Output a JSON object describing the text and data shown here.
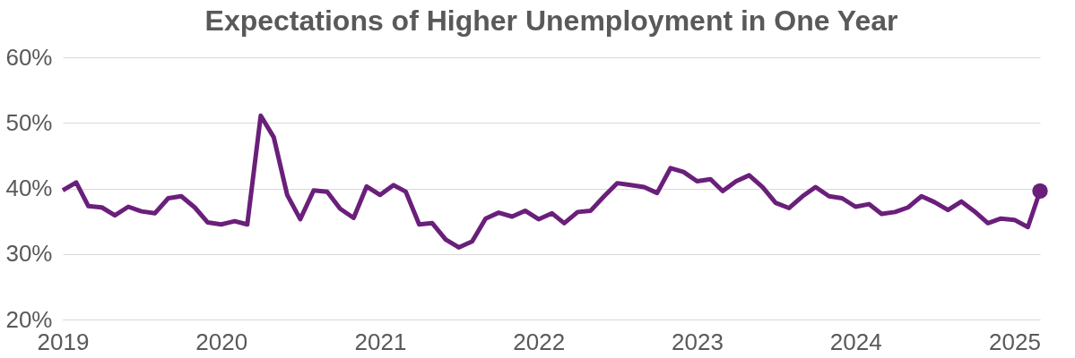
{
  "chart_data": {
    "type": "line",
    "title": "Expectations of Higher Unemployment in One Year",
    "x": [
      "2019-01",
      "2019-02",
      "2019-03",
      "2019-04",
      "2019-05",
      "2019-06",
      "2019-07",
      "2019-08",
      "2019-09",
      "2019-10",
      "2019-11",
      "2019-12",
      "2020-01",
      "2020-02",
      "2020-03",
      "2020-04",
      "2020-05",
      "2020-06",
      "2020-07",
      "2020-08",
      "2020-09",
      "2020-10",
      "2020-11",
      "2020-12",
      "2021-01",
      "2021-02",
      "2021-03",
      "2021-04",
      "2021-05",
      "2021-06",
      "2021-07",
      "2021-08",
      "2021-09",
      "2021-10",
      "2021-11",
      "2021-12",
      "2022-01",
      "2022-02",
      "2022-03",
      "2022-04",
      "2022-05",
      "2022-06",
      "2022-07",
      "2022-08",
      "2022-09",
      "2022-10",
      "2022-11",
      "2022-12",
      "2023-01",
      "2023-02",
      "2023-03",
      "2023-04",
      "2023-05",
      "2023-06",
      "2023-07",
      "2023-08",
      "2023-09",
      "2023-10",
      "2023-11",
      "2023-12",
      "2024-01",
      "2024-02",
      "2024-03",
      "2024-04",
      "2024-05",
      "2024-06",
      "2024-07",
      "2024-08",
      "2024-09",
      "2024-10",
      "2024-11",
      "2024-12",
      "2025-01",
      "2025-02",
      "2025-03"
    ],
    "series": [
      {
        "color": "#6a1f7a",
        "marker": "none",
        "values": [
          39.7,
          40.9,
          37.3,
          37.1,
          35.9,
          37.2,
          36.5,
          36.2,
          38.5,
          38.8,
          37.1,
          34.8,
          34.5,
          35.0,
          34.5,
          51.1,
          47.8,
          39.0,
          35.3,
          39.7,
          39.5,
          36.9,
          35.5,
          40.3,
          39.0,
          40.5,
          39.5,
          34.5,
          34.7,
          32.2,
          31.0,
          31.9,
          35.4,
          36.3,
          35.7,
          36.6,
          35.3,
          36.2,
          34.7,
          36.4,
          36.6,
          38.8,
          40.8,
          40.5,
          40.2,
          39.3,
          43.1,
          42.5,
          41.1,
          41.4,
          39.6,
          41.1,
          42.0,
          40.2,
          37.8,
          37.0,
          38.8,
          40.2,
          38.8,
          38.5,
          37.2,
          37.6,
          36.1,
          36.4,
          37.1,
          38.8,
          37.9,
          36.7,
          38.0,
          36.5,
          34.7,
          35.4,
          35.2,
          34.1,
          39.6
        ]
      },
      {
        "type": "scatter",
        "color": "#6a1f7a",
        "marker": "circle",
        "x": [
          "2025-03"
        ],
        "values": [
          39.6
        ]
      }
    ],
    "xlim": [
      "2019-01",
      "2025-03"
    ],
    "xticks": [
      {
        "value": "2019-01",
        "label": "2019"
      },
      {
        "value": "2020-01",
        "label": "2020"
      },
      {
        "value": "2021-01",
        "label": "2021"
      },
      {
        "value": "2022-01",
        "label": "2022"
      },
      {
        "value": "2023-01",
        "label": "2023"
      },
      {
        "value": "2024-01",
        "label": "2024"
      },
      {
        "value": "2025-01",
        "label": "2025"
      }
    ],
    "ylim": [
      20,
      60
    ],
    "yticks": [
      {
        "value": 20,
        "label": "20%"
      },
      {
        "value": 30,
        "label": "30%"
      },
      {
        "value": 40,
        "label": "40%"
      },
      {
        "value": 50,
        "label": "50%"
      },
      {
        "value": 60,
        "label": "60%"
      }
    ],
    "grid": "y",
    "line_style": "solid"
  }
}
